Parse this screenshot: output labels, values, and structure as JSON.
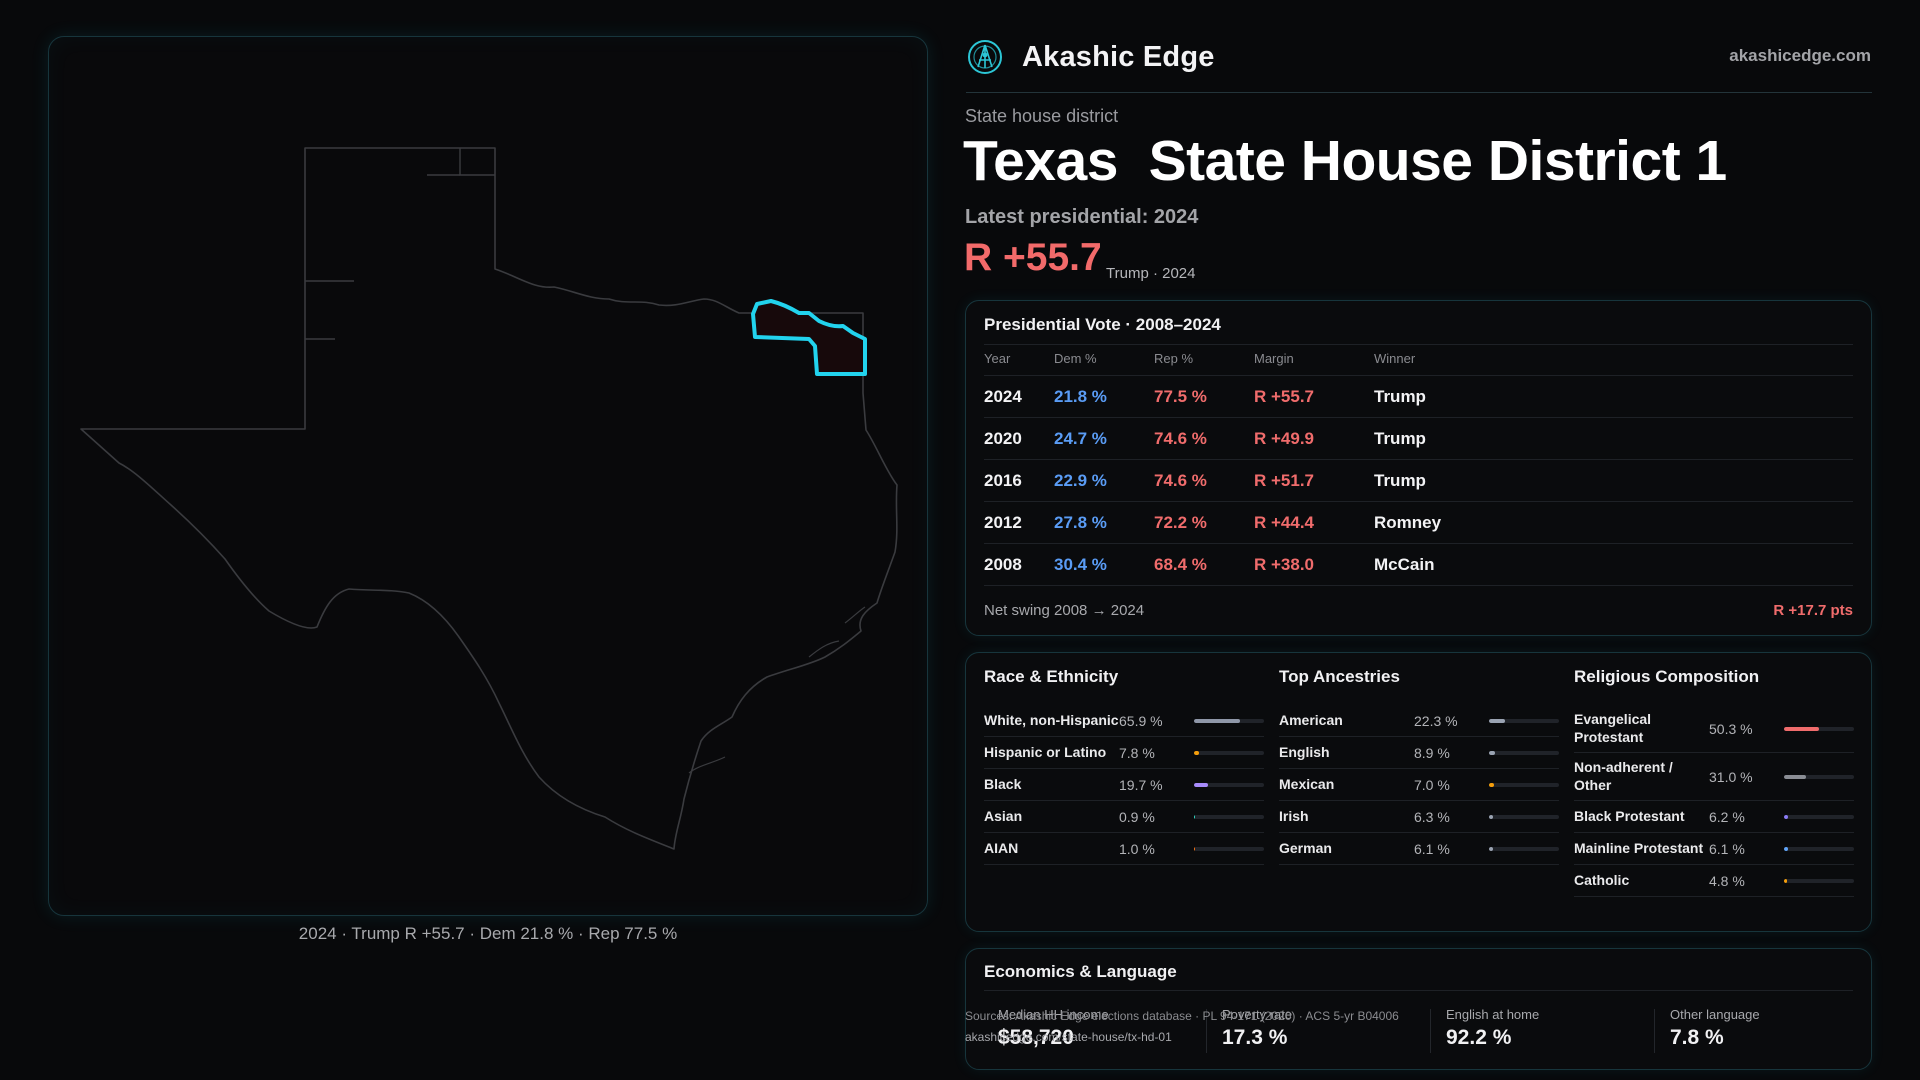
{
  "brand": {
    "name": "Akashic Edge",
    "url": "akashicedge.com"
  },
  "header": {
    "kicker": "State house district",
    "title": "Texas  State House District 1",
    "latest": "Latest presidential: 2024",
    "margin": "R +55.7",
    "margin_sub": "Trump · 2024"
  },
  "map": {
    "caption": "2024 · Trump R +55.7 · Dem 21.8 % · Rep 77.5 %",
    "highlight_color": "#22d3ee",
    "outline_color": "#3a3b3f"
  },
  "votes": {
    "title": "Presidential Vote · 2008–2024",
    "headers": [
      "Year",
      "Dem %",
      "Rep %",
      "Margin",
      "Winner"
    ],
    "rows": [
      {
        "year": "2024",
        "dem": "21.8 %",
        "rep": "77.5 %",
        "margin": "R +55.7",
        "winner": "Trump"
      },
      {
        "year": "2020",
        "dem": "24.7 %",
        "rep": "74.6 %",
        "margin": "R +49.9",
        "winner": "Trump"
      },
      {
        "year": "2016",
        "dem": "22.9 %",
        "rep": "74.6 %",
        "margin": "R +51.7",
        "winner": "Trump"
      },
      {
        "year": "2012",
        "dem": "27.8 %",
        "rep": "72.2 %",
        "margin": "R +44.4",
        "winner": "Romney"
      },
      {
        "year": "2008",
        "dem": "30.4 %",
        "rep": "68.4 %",
        "margin": "R +38.0",
        "winner": "McCain"
      }
    ],
    "swing_label": "Net swing 2008 → 2024",
    "swing_value": "R +17.7 pts",
    "dem_color": "#5a9cf5",
    "rep_color": "#f06c6c"
  },
  "race": {
    "title": "Race & Ethnicity",
    "items": [
      {
        "label": "White, non-Hispanic",
        "pct": "65.9 %",
        "value": 65.9,
        "color": "#8f97a8"
      },
      {
        "label": "Hispanic or Latino",
        "pct": "7.8 %",
        "value": 7.8,
        "color": "#f59e0b"
      },
      {
        "label": "Black",
        "pct": "19.7 %",
        "value": 19.7,
        "color": "#a78bfa"
      },
      {
        "label": "Asian",
        "pct": "0.9 %",
        "value": 0.9,
        "color": "#2dd4bf"
      },
      {
        "label": "AIAN",
        "pct": "1.0 %",
        "value": 1.0,
        "color": "#f97316"
      }
    ]
  },
  "ancestry": {
    "title": "Top Ancestries",
    "items": [
      {
        "label": "American",
        "pct": "22.3 %",
        "value": 22.3,
        "color": "#9aa3b2"
      },
      {
        "label": "English",
        "pct": "8.9 %",
        "value": 8.9,
        "color": "#9aa3b2"
      },
      {
        "label": "Mexican",
        "pct": "7.0 %",
        "value": 7.0,
        "color": "#f59e0b"
      },
      {
        "label": "Irish",
        "pct": "6.3 %",
        "value": 6.3,
        "color": "#9aa3b2"
      },
      {
        "label": "German",
        "pct": "6.1 %",
        "value": 6.1,
        "color": "#9aa3b2"
      }
    ]
  },
  "religion": {
    "title": "Religious Composition",
    "items": [
      {
        "label": "Evangelical Protestant",
        "pct": "50.3 %",
        "value": 50.3,
        "color": "#f06c6c"
      },
      {
        "label": "Non-adherent / Other",
        "pct": "31.0 %",
        "value": 31.0,
        "color": "#8a8d94"
      },
      {
        "label": "Black Protestant",
        "pct": "6.2 %",
        "value": 6.2,
        "color": "#8b7cf6"
      },
      {
        "label": "Mainline Protestant",
        "pct": "6.1 %",
        "value": 6.1,
        "color": "#60a5fa"
      },
      {
        "label": "Catholic",
        "pct": "4.8 %",
        "value": 4.8,
        "color": "#f59e0b"
      }
    ]
  },
  "economics": {
    "title": "Economics & Language",
    "cells": [
      {
        "label": "Median HH income",
        "value": "$58,720"
      },
      {
        "label": "Poverty rate",
        "value": "17.3 %"
      },
      {
        "label": "English at home",
        "value": "92.2 %"
      },
      {
        "label": "Other language",
        "value": "7.8 %"
      }
    ]
  },
  "source": {
    "text": "Sources: Akashic Edge elections database · PL 94-171 (2020) · ACS 5-yr B04006",
    "url": "akashicedge.com/state-house/tx-hd-01"
  }
}
